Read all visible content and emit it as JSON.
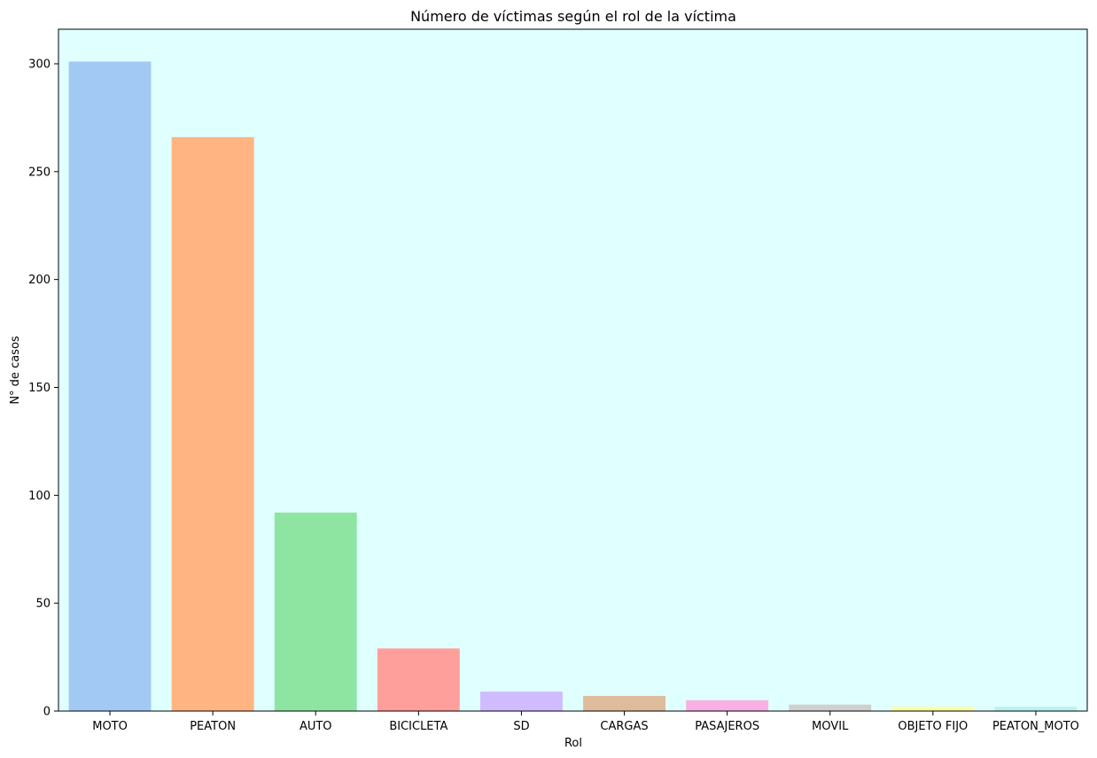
{
  "chart_data": {
    "type": "bar",
    "title": "Número de víctimas según el rol de la víctima",
    "xlabel": "Rol",
    "ylabel": "N° de casos",
    "categories": [
      "MOTO",
      "PEATON",
      "AUTO",
      "BICICLETA",
      "SD",
      "CARGAS",
      "PASAJEROS",
      "MOVIL",
      "OBJETO FIJO",
      "PEATON_MOTO"
    ],
    "values": [
      301,
      266,
      92,
      29,
      9,
      7,
      5,
      3,
      2,
      2
    ],
    "colors": [
      "#a1c9f4",
      "#ffb482",
      "#8de5a1",
      "#ff9f9b",
      "#d0bbff",
      "#debb9b",
      "#fab0e4",
      "#cfcfcf",
      "#fffea3",
      "#b9f2f0"
    ],
    "background": "#e0ffff",
    "ylim": [
      0,
      316
    ],
    "yticks": [
      0,
      50,
      100,
      150,
      200,
      250,
      300
    ],
    "grid": false,
    "legend": "none"
  }
}
